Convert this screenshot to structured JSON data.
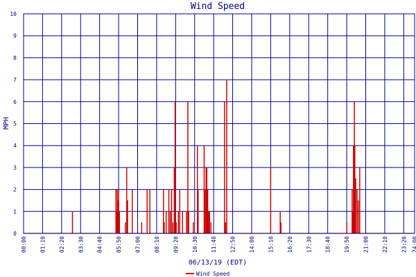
{
  "chart_data": {
    "type": "line",
    "title": "Wind Speed",
    "xlabel": "06/13/19 (EDT)",
    "ylabel": "MPH",
    "ylim": [
      0,
      10
    ],
    "xlim": [
      "00:00",
      "24:00"
    ],
    "grid": true,
    "legend": "bottom",
    "colors": {
      "series": "#cc0000",
      "grid": "#000080",
      "text": "#000080",
      "background": "#ffffff"
    },
    "y_ticks": [
      "0",
      "1",
      "2",
      "3",
      "4",
      "5",
      "6",
      "7",
      "8",
      "9",
      "10"
    ],
    "x_ticks": [
      "00:00",
      "01:10",
      "02:20",
      "03:30",
      "04:40",
      "05:50",
      "07:00",
      "08:10",
      "09:20",
      "10:30",
      "11:40",
      "12:50",
      "14:00",
      "15:10",
      "16:20",
      "17:30",
      "18:40",
      "19:50",
      "21:00",
      "22:10",
      "23:20",
      "24:00"
    ],
    "series": [
      {
        "name": "Wind Speed",
        "points": [
          [
            "03:00",
            1
          ],
          [
            "05:40",
            2
          ],
          [
            "05:42",
            1
          ],
          [
            "05:45",
            2
          ],
          [
            "05:48",
            1.5
          ],
          [
            "05:50",
            2
          ],
          [
            "05:53",
            1
          ],
          [
            "06:15",
            0.5
          ],
          [
            "06:20",
            3
          ],
          [
            "06:23",
            1.5
          ],
          [
            "06:40",
            2
          ],
          [
            "07:15",
            0.5
          ],
          [
            "07:35",
            2
          ],
          [
            "07:45",
            2
          ],
          [
            "08:35",
            2
          ],
          [
            "08:38",
            0.5
          ],
          [
            "08:45",
            1
          ],
          [
            "08:55",
            2
          ],
          [
            "09:00",
            1
          ],
          [
            "09:05",
            2
          ],
          [
            "09:10",
            0.5
          ],
          [
            "09:15",
            3
          ],
          [
            "09:18",
            6
          ],
          [
            "09:22",
            0.5
          ],
          [
            "09:30",
            1
          ],
          [
            "09:35",
            2
          ],
          [
            "09:45",
            1
          ],
          [
            "10:00",
            1
          ],
          [
            "10:05",
            6
          ],
          [
            "10:08",
            1
          ],
          [
            "10:25",
            0.5
          ],
          [
            "10:40",
            4
          ],
          [
            "10:43",
            2
          ],
          [
            "11:05",
            4
          ],
          [
            "11:08",
            2
          ],
          [
            "11:12",
            3
          ],
          [
            "11:15",
            3
          ],
          [
            "11:18",
            2
          ],
          [
            "11:21",
            1
          ],
          [
            "11:25",
            1
          ],
          [
            "11:30",
            0.5
          ],
          [
            "12:20",
            6
          ],
          [
            "12:24",
            0.5
          ],
          [
            "12:28",
            7
          ],
          [
            "15:10",
            3
          ],
          [
            "15:45",
            1
          ],
          [
            "15:48",
            0.5
          ],
          [
            "19:50",
            0.5
          ],
          [
            "20:10",
            2
          ],
          [
            "20:12",
            1
          ],
          [
            "20:15",
            4
          ],
          [
            "20:18",
            6
          ],
          [
            "20:20",
            4
          ],
          [
            "20:23",
            2.5
          ],
          [
            "20:28",
            2
          ],
          [
            "20:33",
            1.5
          ],
          [
            "20:38",
            3
          ]
        ]
      }
    ]
  }
}
